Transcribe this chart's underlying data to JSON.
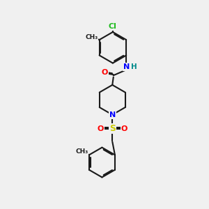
{
  "bg_color": "#f0f0f0",
  "bond_color": "#1a1a1a",
  "bond_width": 1.5,
  "atom_colors": {
    "Cl": "#22bb22",
    "O": "#ff0000",
    "N": "#0000ff",
    "H": "#008b8b",
    "S": "#cccc00",
    "C": "#1a1a1a"
  }
}
